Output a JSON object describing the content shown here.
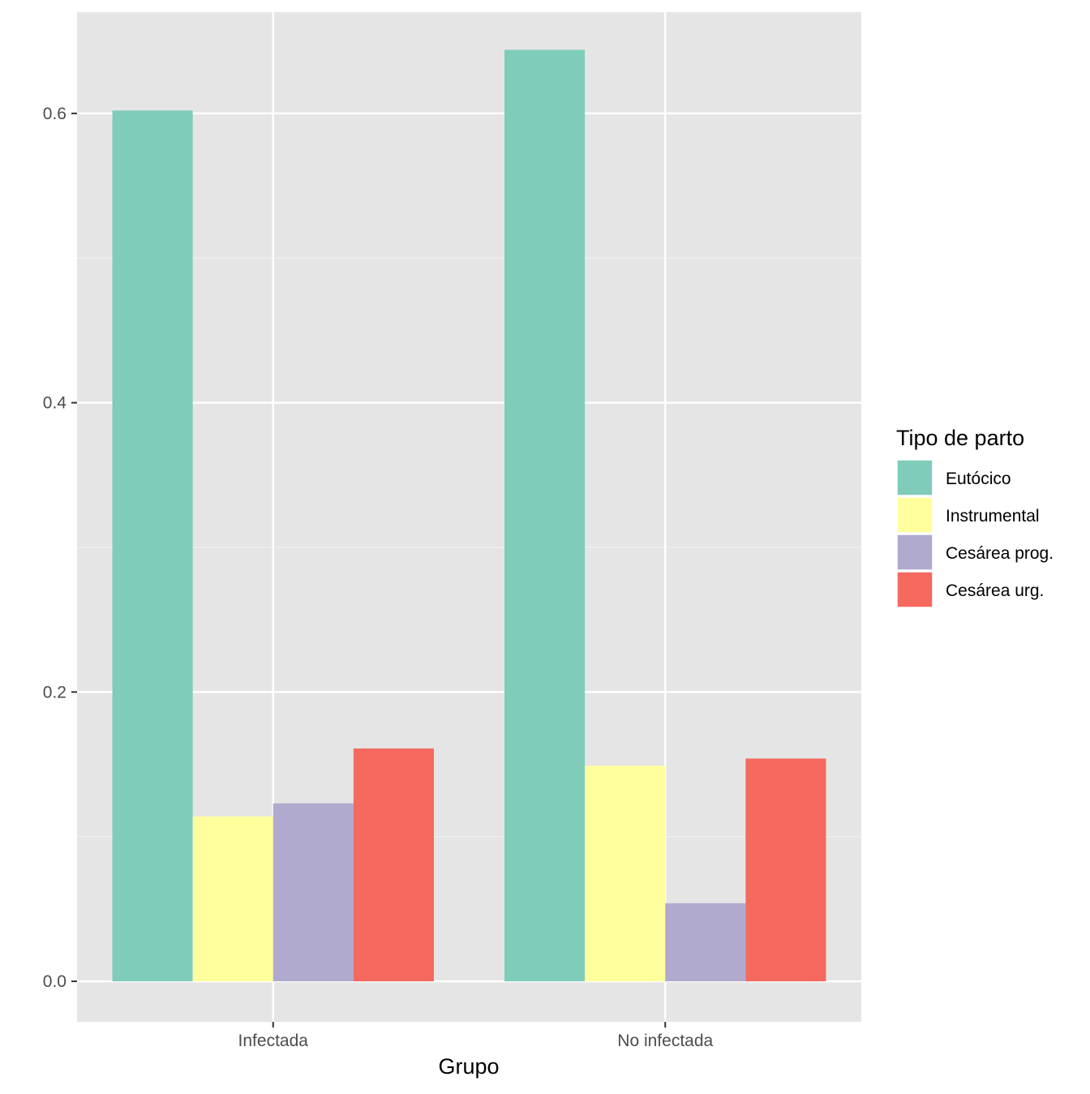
{
  "chart_data": {
    "type": "bar",
    "title": "",
    "xlabel": "Grupo",
    "ylabel": "",
    "categories": [
      "Infectada",
      "No infectada"
    ],
    "ylim": [
      -0.028,
      0.67
    ],
    "yticks": [
      0.0,
      0.2,
      0.4,
      0.6
    ],
    "ytick_labels": [
      "0.0",
      "0.2",
      "0.4",
      "0.6"
    ],
    "grid": true,
    "legend": {
      "title": "Tipo de parto",
      "position": "right"
    },
    "series": [
      {
        "name": "Eutócico",
        "color": "#7FCCBB",
        "values": [
          0.602,
          0.644
        ]
      },
      {
        "name": "Instrumental",
        "color": "#FFFF9E",
        "values": [
          0.114,
          0.149
        ]
      },
      {
        "name": "Cesárea prog.",
        "color": "#B0AACF",
        "values": [
          0.123,
          0.054
        ]
      },
      {
        "name": "Cesárea urg.",
        "color": "#F5695F",
        "values": [
          0.161,
          0.154
        ]
      }
    ]
  }
}
